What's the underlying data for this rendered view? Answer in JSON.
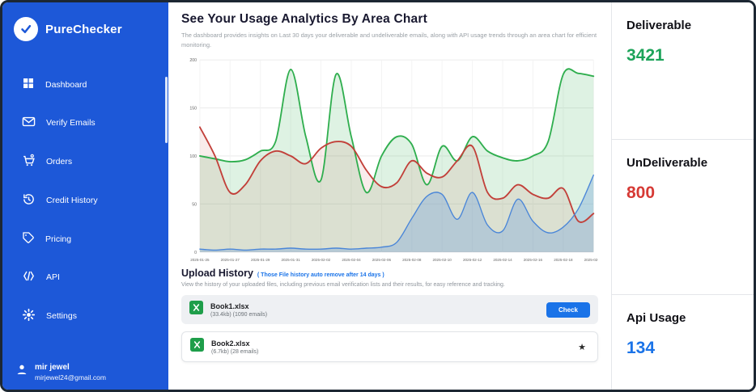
{
  "brand": {
    "name": "PureChecker"
  },
  "sidebar": {
    "items": [
      {
        "label": "Dashboard"
      },
      {
        "label": "Verify Emails"
      },
      {
        "label": "Orders"
      },
      {
        "label": "Credit History"
      },
      {
        "label": "Pricing"
      },
      {
        "label": "API"
      },
      {
        "label": "Settings"
      }
    ],
    "user": {
      "name": "mir jewel",
      "email": "mirjewel24@gmail.com"
    }
  },
  "main": {
    "title": "See Your Usage Analytics By Area Chart",
    "subtitle": "The dashboard provides insights on Last 30 days your deliverable and undeliverable emails, along with API usage trends through an area chart for efficient monitoring.",
    "upload_history": {
      "title": "Upload History",
      "note": "( Those File history auto remove after 14 days )",
      "description": "View the history of your uploaded files, including previous email verification lists and their results, for easy reference and tracking.",
      "files": [
        {
          "name": "Book1.xlsx",
          "size": "(33.4kb)",
          "emails": "(1090 emails)",
          "action_label": "Check"
        },
        {
          "name": "Book2.xlsx",
          "size": "(6.7kb)",
          "emails": "(28 emails)",
          "action_label": "★"
        }
      ]
    }
  },
  "stats": [
    {
      "label": "Deliverable",
      "value": "3421",
      "color": "#1da45a"
    },
    {
      "label": "UnDeliverable",
      "value": "800",
      "color": "#d63a35"
    },
    {
      "label": "Api Usage",
      "value": "134",
      "color": "#1a73e8"
    }
  ],
  "chart_data": {
    "type": "area",
    "title": "Usage Analytics Area Chart (Last 30 days)",
    "xlabel": "",
    "ylabel": "",
    "ylim": [
      0,
      200
    ],
    "yticks": [
      0,
      50,
      100,
      150,
      200
    ],
    "grid": true,
    "legend_position": "none",
    "x": [
      "2025-01-25",
      "2025-01-26",
      "2025-01-27",
      "2025-01-28",
      "2025-01-29",
      "2025-01-30",
      "2025-01-31",
      "2025-02-01",
      "2025-02-02",
      "2025-02-03",
      "2025-02-04",
      "2025-02-05",
      "2025-02-06",
      "2025-02-07",
      "2025-02-08",
      "2025-02-09",
      "2025-02-10",
      "2025-02-11",
      "2025-02-12",
      "2025-02-13",
      "2025-02-14",
      "2025-02-15",
      "2025-02-16",
      "2025-02-17",
      "2025-02-18",
      "2025-02-19",
      "2025-02-20"
    ],
    "series": [
      {
        "name": "Deliverable",
        "color": "#2fae4e",
        "fill": "rgba(47,174,78,0.16)",
        "values": [
          100,
          97,
          94,
          96,
          105,
          115,
          190,
          120,
          75,
          185,
          120,
          62,
          100,
          120,
          112,
          70,
          110,
          95,
          120,
          105,
          98,
          95,
          100,
          115,
          185,
          186,
          183
        ]
      },
      {
        "name": "UnDeliverable",
        "color": "#c2403a",
        "fill": "rgba(194,64,58,0.10)",
        "values": [
          130,
          100,
          62,
          70,
          95,
          105,
          100,
          92,
          108,
          115,
          110,
          85,
          68,
          72,
          95,
          82,
          78,
          95,
          110,
          62,
          56,
          70,
          60,
          56,
          66,
          32,
          40
        ]
      },
      {
        "name": "Api Usage",
        "color": "#4a86d8",
        "fill": "rgba(120,165,220,0.38)",
        "values": [
          3,
          2,
          3,
          2,
          3,
          3,
          4,
          3,
          3,
          4,
          3,
          4,
          5,
          10,
          35,
          58,
          60,
          34,
          62,
          28,
          22,
          55,
          32,
          20,
          26,
          45,
          80
        ]
      }
    ]
  }
}
